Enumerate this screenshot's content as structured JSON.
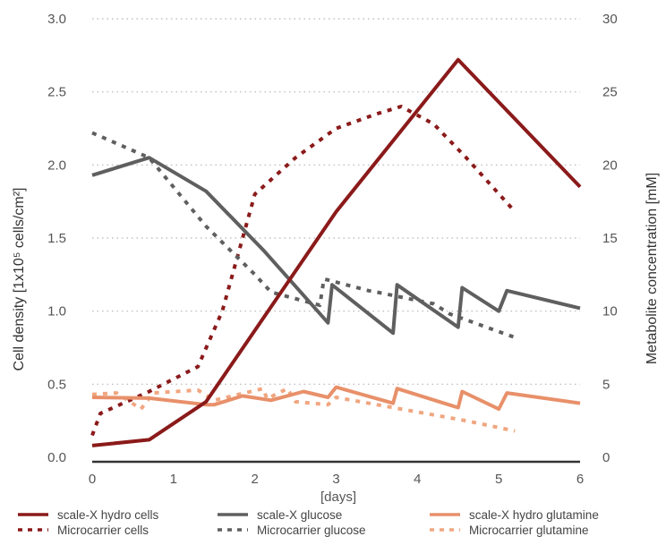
{
  "chart_data": {
    "type": "line",
    "xlabel": "[days]",
    "ylabel_left": "Cell density [1x10⁵ cells/cm²]",
    "ylabel_right": "Metabolite concentration [mM]",
    "xlim": [
      0,
      6
    ],
    "ylim_left": [
      0,
      3.0
    ],
    "ylim_right": [
      0,
      30
    ],
    "x_ticks": [
      "0",
      "1",
      "2",
      "3",
      "4",
      "5",
      "6"
    ],
    "y_ticks_left": [
      "0.0",
      "0.5",
      "1.0",
      "1.5",
      "2.0",
      "2.5",
      "3.0"
    ],
    "y_ticks_right": [
      "0",
      "5",
      "10",
      "15",
      "20",
      "25",
      "30"
    ],
    "grid": "horizontal dotted",
    "legend_position": "bottom",
    "series": [
      {
        "name": "scale-X hydro cells",
        "axis": "left",
        "color": "#8b1a1a",
        "style": "solid",
        "x": [
          0,
          0.7,
          1.4,
          3.0,
          4.5,
          6.0
        ],
        "y": [
          0.08,
          0.12,
          0.38,
          1.68,
          2.72,
          1.85
        ]
      },
      {
        "name": "Microcarrier cells",
        "axis": "left",
        "color": "#8b1a1a",
        "style": "dashed",
        "x": [
          0,
          0.1,
          0.7,
          1.3,
          1.6,
          2.0,
          2.5,
          3.0,
          3.5,
          3.8,
          4.2,
          4.6,
          5.2
        ],
        "y": [
          0.15,
          0.3,
          0.45,
          0.62,
          1.0,
          1.8,
          2.05,
          2.25,
          2.35,
          2.4,
          2.28,
          2.05,
          1.68
        ]
      },
      {
        "name": "scale-X glucose",
        "axis": "right",
        "color": "#5f5f5f",
        "style": "solid",
        "x": [
          0,
          0.7,
          1.4,
          2.1,
          2.9,
          2.95,
          3.7,
          3.75,
          4.5,
          4.55,
          5.0,
          5.1,
          6.0
        ],
        "y": [
          19.3,
          20.5,
          18.2,
          14.2,
          9.2,
          11.8,
          8.5,
          11.8,
          8.9,
          11.6,
          10.0,
          11.4,
          10.2
        ]
      },
      {
        "name": "Microcarrier glucose",
        "axis": "right",
        "color": "#5f5f5f",
        "style": "dashed",
        "x": [
          0,
          0.7,
          1.4,
          2.0,
          2.2,
          2.8,
          2.85,
          3.4,
          3.5,
          4.2,
          4.4,
          5.2
        ],
        "y": [
          22.2,
          20.5,
          15.8,
          12.5,
          11.3,
          10.4,
          12.2,
          11.4,
          11.3,
          10.5,
          9.8,
          8.2
        ]
      },
      {
        "name": "scale-X hydro glutamine",
        "axis": "right",
        "color": "#e8906a",
        "style": "solid",
        "x": [
          0,
          0.7,
          1.4,
          1.5,
          1.85,
          2.2,
          2.6,
          2.9,
          3.0,
          3.7,
          3.75,
          4.5,
          4.55,
          5.0,
          5.1,
          6.0
        ],
        "y": [
          4.1,
          4.05,
          3.6,
          3.6,
          4.2,
          3.9,
          4.5,
          4.1,
          4.8,
          3.7,
          4.7,
          3.4,
          4.5,
          3.3,
          4.4,
          3.7
        ]
      },
      {
        "name": "Microcarrier glutamine",
        "axis": "right",
        "color": "#f0a680",
        "style": "dashed",
        "x": [
          0,
          0.3,
          0.6,
          0.75,
          1.3,
          1.5,
          2.1,
          2.15,
          2.4,
          2.5,
          2.9,
          3.0,
          3.8,
          4.6,
          5.2
        ],
        "y": [
          4.3,
          4.4,
          3.3,
          4.4,
          4.6,
          3.9,
          4.7,
          4.0,
          4.7,
          3.8,
          3.6,
          4.1,
          3.3,
          2.5,
          1.8
        ]
      }
    ]
  }
}
